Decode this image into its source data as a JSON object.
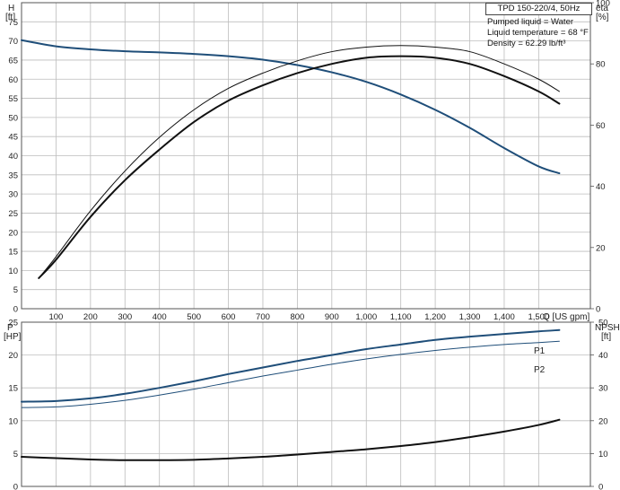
{
  "pump_model": "TPD 150-220/4, 50Hz",
  "info": {
    "liquid": "Pumped liquid = Water",
    "temperature": "Liquid temperature = 68 °F",
    "density": "Density = 62.29 lb/ft³"
  },
  "colors": {
    "head": "#1f4e79",
    "efficiency": "#111111",
    "power": "#1f4e79",
    "npsh": "#111111",
    "grid": "#bdbdbd"
  },
  "chart_data": [
    {
      "type": "line",
      "panel": "top",
      "xlabel": "Q [US gpm]",
      "xlim": [
        0,
        1650
      ],
      "x_ticks": [
        "100",
        "200",
        "300",
        "400",
        "500",
        "600",
        "700",
        "800",
        "900",
        "1,000",
        "1,100",
        "1,200",
        "1,300",
        "1,400",
        "1,500"
      ],
      "ylabel_left": "H\n[ft]",
      "ylim_left": [
        0,
        80
      ],
      "y_ticks_left": [
        "0",
        "5",
        "10",
        "15",
        "20",
        "25",
        "30",
        "35",
        "40",
        "45",
        "50",
        "55",
        "60",
        "65",
        "70",
        "75"
      ],
      "ylabel_right": "eta\n[%]",
      "ylim_right": [
        0,
        100
      ],
      "y_ticks_right": [
        "0",
        "20",
        "40",
        "60",
        "80",
        "100"
      ],
      "grid": true,
      "series": [
        {
          "axis": "left",
          "x": [
            0,
            100,
            200,
            300,
            400,
            500,
            600,
            700,
            800,
            900,
            1000,
            1100,
            1200,
            1300,
            1400,
            1500,
            1560
          ],
          "values": [
            70.2,
            68.6,
            67.8,
            67.3,
            67.0,
            66.6,
            66.0,
            65.1,
            63.7,
            61.8,
            59.3,
            56.0,
            52.0,
            47.3,
            42.0,
            37.2,
            35.4
          ]
        },
        {
          "axis": "right",
          "x": [
            50,
            100,
            200,
            300,
            400,
            500,
            600,
            700,
            800,
            900,
            1000,
            1100,
            1200,
            1300,
            1400,
            1500,
            1560
          ],
          "values": [
            10,
            16,
            30,
            42,
            52,
            61,
            68,
            73,
            77,
            80,
            82,
            82.5,
            82,
            80,
            76,
            71,
            67
          ]
        },
        {
          "axis": "right",
          "x": [
            50,
            100,
            200,
            300,
            400,
            500,
            600,
            700,
            800,
            900,
            1000,
            1100,
            1200,
            1300,
            1400,
            1500,
            1560
          ],
          "values": [
            10,
            17,
            32,
            45,
            56,
            65,
            72,
            77,
            81,
            84,
            85.5,
            86,
            85.5,
            84,
            80,
            75,
            71
          ]
        }
      ]
    },
    {
      "type": "line",
      "panel": "bottom",
      "xlim": [
        0,
        1650
      ],
      "ylabel_left": "P\n[HP]",
      "ylim_left": [
        0,
        25
      ],
      "y_ticks_left": [
        "0",
        "5",
        "10",
        "15",
        "20",
        "25"
      ],
      "ylabel_right": "NPSH\n[ft]",
      "ylim_right": [
        0,
        50
      ],
      "y_ticks_right": [
        "0",
        "10",
        "20",
        "30",
        "40",
        "50"
      ],
      "grid": true,
      "series": [
        {
          "name": "P1",
          "axis": "left",
          "x": [
            0,
            100,
            200,
            300,
            400,
            500,
            600,
            700,
            800,
            900,
            1000,
            1100,
            1200,
            1300,
            1400,
            1500,
            1560
          ],
          "values": [
            12.9,
            13.0,
            13.4,
            14.1,
            15.0,
            16.0,
            17.1,
            18.1,
            19.1,
            20.0,
            20.9,
            21.6,
            22.3,
            22.8,
            23.2,
            23.6,
            23.8
          ]
        },
        {
          "name": "P2",
          "axis": "left",
          "x": [
            0,
            100,
            200,
            300,
            400,
            500,
            600,
            700,
            800,
            900,
            1000,
            1100,
            1200,
            1300,
            1400,
            1500,
            1560
          ],
          "values": [
            12.0,
            12.1,
            12.5,
            13.1,
            13.9,
            14.8,
            15.8,
            16.8,
            17.7,
            18.6,
            19.4,
            20.1,
            20.7,
            21.2,
            21.6,
            21.9,
            22.1
          ]
        },
        {
          "axis": "right",
          "x": [
            0,
            100,
            200,
            300,
            400,
            500,
            600,
            700,
            800,
            900,
            1000,
            1100,
            1200,
            1300,
            1400,
            1500,
            1560
          ],
          "values": [
            9.0,
            8.6,
            8.2,
            8.0,
            8.0,
            8.1,
            8.5,
            9.0,
            9.7,
            10.5,
            11.3,
            12.3,
            13.5,
            15.0,
            16.7,
            18.7,
            20.3
          ]
        }
      ]
    }
  ]
}
